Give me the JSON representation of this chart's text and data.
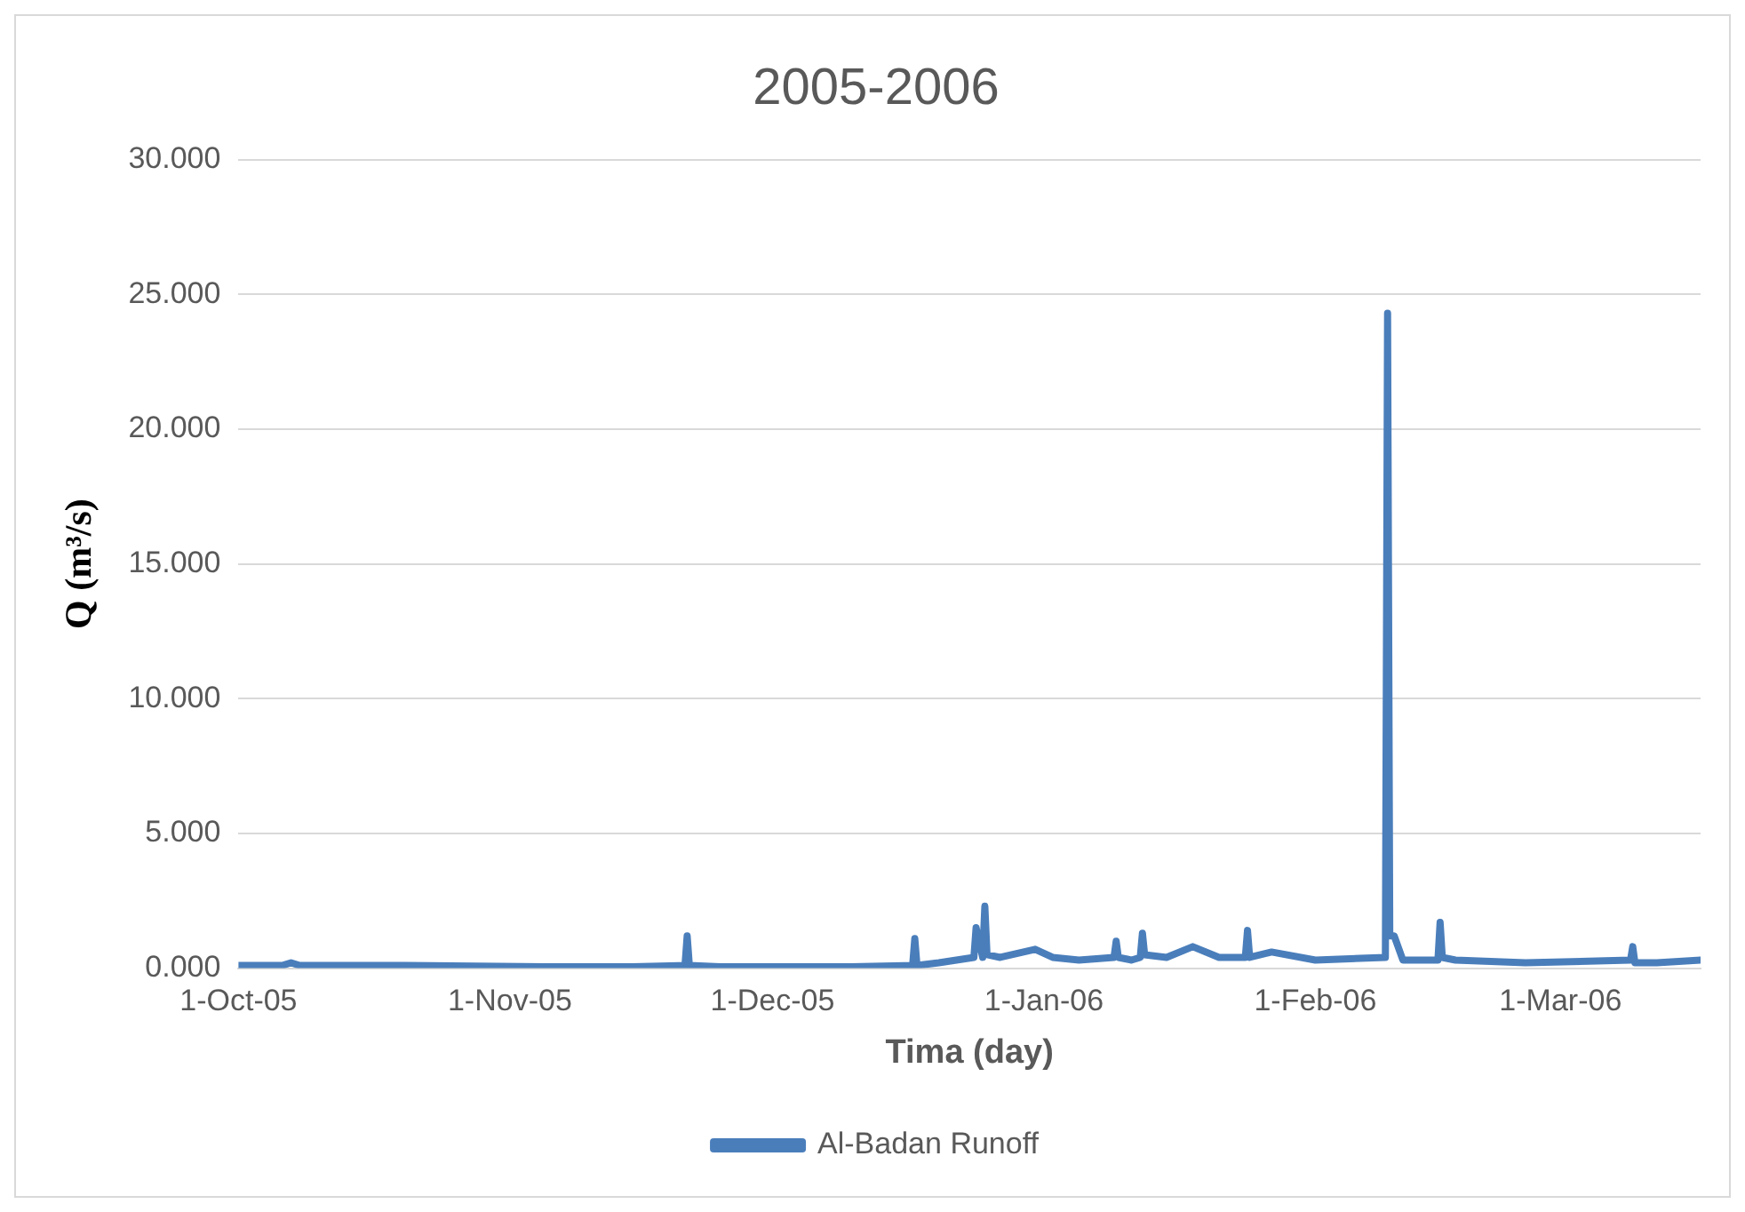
{
  "chart_data": {
    "type": "line",
    "title": "2005-2006",
    "xlabel": "Tima (day)",
    "ylabel": "Q (m³/s)",
    "x": [
      "2005-10-01",
      "2005-10-06",
      "2005-10-07",
      "2005-10-08",
      "2005-10-20",
      "2005-11-05",
      "2005-11-15",
      "2005-11-21T00:00",
      "2005-11-21T06:00",
      "2005-11-21T12:00",
      "2005-11-25",
      "2005-12-10",
      "2005-12-17T00:00",
      "2005-12-17T06:00",
      "2005-12-17T12:00",
      "2005-12-20",
      "2005-12-24T00:00",
      "2005-12-24T06:00",
      "2005-12-25T00:00",
      "2005-12-25T06:00",
      "2005-12-25T12:00",
      "2005-12-27",
      "2005-12-31",
      "2006-01-02",
      "2006-01-05",
      "2006-01-09T00:00",
      "2006-01-09T06:00",
      "2006-01-09T12:00",
      "2006-01-11",
      "2006-01-12T00:00",
      "2006-01-12T06:00",
      "2006-01-12T12:00",
      "2006-01-15",
      "2006-01-18",
      "2006-01-21",
      "2006-01-24T00:00",
      "2006-01-24T06:00",
      "2006-01-24T12:00",
      "2006-01-27",
      "2006-02-01",
      "2006-02-09T00:00",
      "2006-02-09T06:00",
      "2006-02-09T12:00",
      "2006-02-10",
      "2006-02-11",
      "2006-02-15T00:00",
      "2006-02-15T06:00",
      "2006-02-15T12:00",
      "2006-02-17",
      "2006-02-25",
      "2006-03-09T00:00",
      "2006-03-09T06:00",
      "2006-03-09T12:00",
      "2006-03-12",
      "2006-03-17"
    ],
    "series": [
      {
        "name": "Al-Badan Runoff",
        "color": "#4a7ebb",
        "values": [
          0.1,
          0.1,
          0.2,
          0.1,
          0.1,
          0.05,
          0.05,
          0.1,
          1.2,
          0.1,
          0.05,
          0.05,
          0.1,
          1.1,
          0.1,
          0.2,
          0.4,
          1.5,
          0.4,
          2.3,
          0.5,
          0.4,
          0.7,
          0.4,
          0.3,
          0.4,
          1.0,
          0.4,
          0.3,
          0.4,
          1.3,
          0.5,
          0.4,
          0.8,
          0.4,
          0.4,
          1.4,
          0.4,
          0.6,
          0.3,
          0.4,
          24.3,
          1.2,
          1.2,
          0.3,
          0.3,
          1.7,
          0.4,
          0.3,
          0.2,
          0.3,
          0.8,
          0.2,
          0.2,
          0.3
        ]
      }
    ],
    "xlim": [
      "2005-10-01",
      "2006-03-17"
    ],
    "xticks": [
      {
        "value": "2005-10-01",
        "label": "1-Oct-05"
      },
      {
        "value": "2005-11-01",
        "label": "1-Nov-05"
      },
      {
        "value": "2005-12-01",
        "label": "1-Dec-05"
      },
      {
        "value": "2006-01-01",
        "label": "1-Jan-06"
      },
      {
        "value": "2006-02-01",
        "label": "1-Feb-06"
      },
      {
        "value": "2006-03-01",
        "label": "1-Mar-06"
      }
    ],
    "ylim": [
      0,
      30
    ],
    "yticks": [
      {
        "value": 0,
        "label": "0.000"
      },
      {
        "value": 5,
        "label": "5.000"
      },
      {
        "value": 10,
        "label": "10.000"
      },
      {
        "value": 15,
        "label": "15.000"
      },
      {
        "value": 20,
        "label": "20.000"
      },
      {
        "value": 25,
        "label": "25.000"
      },
      {
        "value": 30,
        "label": "30.000"
      }
    ],
    "grid": "y",
    "legend": "bottom",
    "marker": "none",
    "line_style": "solid"
  }
}
